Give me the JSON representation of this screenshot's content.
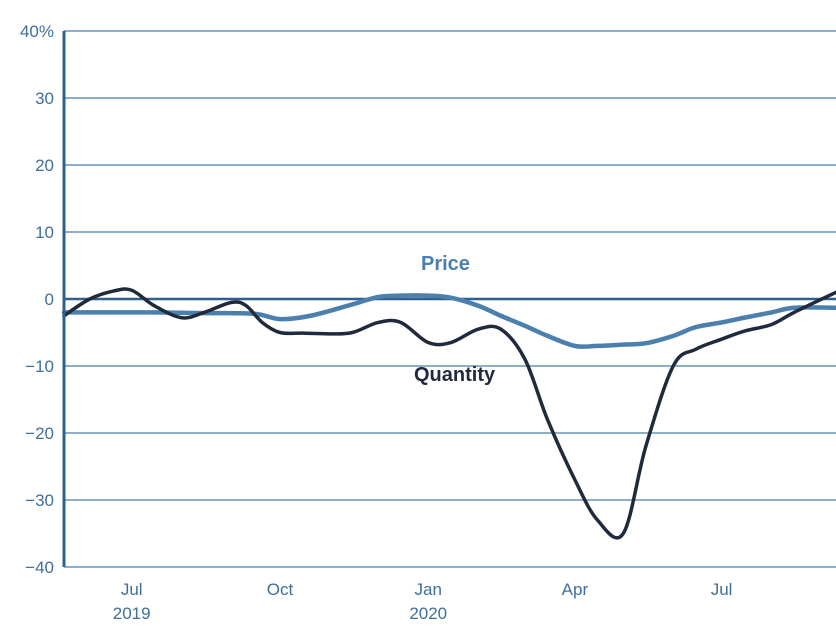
{
  "chart_data": {
    "type": "line",
    "y_ticks": [
      "40%",
      "30",
      "20",
      "10",
      "0",
      "−10",
      "−20",
      "−30",
      "−40"
    ],
    "y_tick_values": [
      40,
      30,
      20,
      10,
      0,
      -10,
      -20,
      -30,
      -40
    ],
    "ylim": [
      -40,
      40
    ],
    "xlim": [
      "2019-05-20",
      "2020-09-10"
    ],
    "x_ticks": [
      {
        "date": "2019-07-01",
        "label": "Jul",
        "sublabel": "2019"
      },
      {
        "date": "2019-10-01",
        "label": "Oct",
        "sublabel": ""
      },
      {
        "date": "2020-01-01",
        "label": "Jan",
        "sublabel": "2020"
      },
      {
        "date": "2020-04-01",
        "label": "Apr",
        "sublabel": ""
      },
      {
        "date": "2020-07-01",
        "label": "Jul",
        "sublabel": ""
      }
    ],
    "grid": true,
    "series": [
      {
        "name": "Price",
        "color": "#4a7fae",
        "x": [
          "2019-05-20",
          "2019-06-15",
          "2019-07-15",
          "2019-08-15",
          "2019-09-15",
          "2019-10-01",
          "2019-10-20",
          "2019-11-15",
          "2019-12-01",
          "2019-12-15",
          "2020-01-01",
          "2020-01-15",
          "2020-02-01",
          "2020-02-15",
          "2020-03-01",
          "2020-03-15",
          "2020-04-01",
          "2020-04-15",
          "2020-05-01",
          "2020-05-15",
          "2020-06-01",
          "2020-06-15",
          "2020-07-01",
          "2020-07-15",
          "2020-08-01",
          "2020-08-15",
          "2020-09-10"
        ],
        "values": [
          -2.0,
          -2.0,
          -2.0,
          -2.1,
          -2.2,
          -3.0,
          -2.5,
          -0.8,
          0.3,
          0.5,
          0.5,
          0.2,
          -1.0,
          -2.5,
          -4.0,
          -5.5,
          -7.0,
          -7.0,
          -6.8,
          -6.6,
          -5.5,
          -4.2,
          -3.5,
          -2.8,
          -2.0,
          -1.3,
          -1.3
        ]
      },
      {
        "name": "Quantity",
        "color": "#1f2b3d",
        "x": [
          "2019-05-20",
          "2019-06-05",
          "2019-06-20",
          "2019-07-01",
          "2019-07-15",
          "2019-08-01",
          "2019-08-15",
          "2019-09-01",
          "2019-09-10",
          "2019-09-20",
          "2019-10-01",
          "2019-10-15",
          "2019-11-01",
          "2019-11-15",
          "2019-12-01",
          "2019-12-15",
          "2020-01-01",
          "2020-01-15",
          "2020-02-01",
          "2020-02-15",
          "2020-03-01",
          "2020-03-15",
          "2020-04-01",
          "2020-04-15",
          "2020-05-01",
          "2020-05-15",
          "2020-06-01",
          "2020-06-15",
          "2020-07-01",
          "2020-07-15",
          "2020-08-01",
          "2020-08-15",
          "2020-09-10"
        ],
        "values": [
          -2.5,
          0.0,
          1.2,
          1.3,
          -1.0,
          -2.8,
          -2.0,
          -0.5,
          -1.0,
          -3.5,
          -5.0,
          -5.1,
          -5.2,
          -5.0,
          -3.5,
          -3.5,
          -6.5,
          -6.5,
          -4.5,
          -4.5,
          -9.0,
          -18.0,
          -27.0,
          -33.0,
          -35.0,
          -22.0,
          -10.0,
          -7.5,
          -6.0,
          -4.8,
          -3.8,
          -2.0,
          1.0
        ]
      }
    ]
  },
  "labels": {
    "price": "Price",
    "quantity": "Quantity"
  },
  "colors": {
    "grid": "#4a7fae",
    "axis": "#2d5f8f",
    "zero_line": "#2d5f8f",
    "tick_text": "#3f6f9a"
  }
}
